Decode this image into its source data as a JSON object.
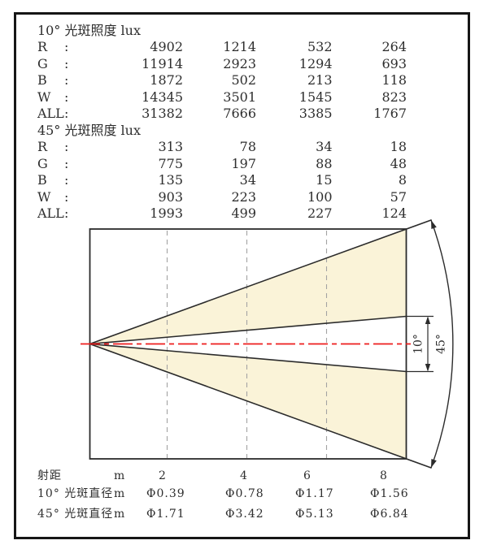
{
  "punct": {
    "colon": ":"
  },
  "sections": [
    {
      "title": "10° 光斑照度 lux",
      "rows": [
        {
          "label": "R",
          "values": [
            "4902",
            "1214",
            "532",
            "264"
          ]
        },
        {
          "label": "G",
          "values": [
            "11914",
            "2923",
            "1294",
            "693"
          ]
        },
        {
          "label": "B",
          "values": [
            "1872",
            "502",
            "213",
            "118"
          ]
        },
        {
          "label": "W",
          "values": [
            "14345",
            "3501",
            "1545",
            "823"
          ]
        },
        {
          "label": "ALL",
          "values": [
            "31382",
            "7666",
            "3385",
            "1767"
          ]
        }
      ]
    },
    {
      "title": "45° 光斑照度 lux",
      "rows": [
        {
          "label": "R",
          "values": [
            "313",
            "78",
            "34",
            "18"
          ]
        },
        {
          "label": "G",
          "values": [
            "775",
            "197",
            "88",
            "48"
          ]
        },
        {
          "label": "B",
          "values": [
            "135",
            "34",
            "15",
            "8"
          ]
        },
        {
          "label": "W",
          "values": [
            "903",
            "223",
            "100",
            "57"
          ]
        },
        {
          "label": "ALL",
          "values": [
            "1993",
            "499",
            "227",
            "124"
          ]
        }
      ]
    }
  ],
  "diagram": {
    "angle_narrow_label": "10°",
    "angle_wide_label": "45°",
    "beam_fill_color": "#faf3d8",
    "centerline_color": "#ee1c1c",
    "outline_color": "#2b2b2b",
    "grid_color": "#a3a3a3"
  },
  "footer": {
    "distance_row": {
      "label": "射距",
      "unit": "m",
      "values": [
        "2",
        "4",
        "6",
        "8"
      ]
    },
    "diameter_rows": [
      {
        "label": "10° 光斑直径",
        "unit": "m",
        "values": [
          "Φ0.39",
          "Φ0.78",
          "Φ1.17",
          "Φ1.56"
        ]
      },
      {
        "label": "45° 光斑直径",
        "unit": "m",
        "values": [
          "Φ1.71",
          "Φ3.42",
          "Φ5.13",
          "Φ6.84"
        ]
      }
    ]
  },
  "chart_data": [
    {
      "type": "table",
      "title": "10° 光斑照度 lux",
      "categories": [
        2,
        4,
        6,
        8
      ],
      "xlabel": "射距 m",
      "series": [
        {
          "name": "R",
          "values": [
            4902,
            1214,
            532,
            264
          ]
        },
        {
          "name": "G",
          "values": [
            11914,
            2923,
            1294,
            693
          ]
        },
        {
          "name": "B",
          "values": [
            1872,
            502,
            213,
            118
          ]
        },
        {
          "name": "W",
          "values": [
            14345,
            3501,
            1545,
            823
          ]
        },
        {
          "name": "ALL",
          "values": [
            31382,
            7666,
            3385,
            1767
          ]
        }
      ]
    },
    {
      "type": "table",
      "title": "45° 光斑照度 lux",
      "categories": [
        2,
        4,
        6,
        8
      ],
      "xlabel": "射距 m",
      "series": [
        {
          "name": "R",
          "values": [
            313,
            78,
            34,
            18
          ]
        },
        {
          "name": "G",
          "values": [
            775,
            197,
            88,
            48
          ]
        },
        {
          "name": "B",
          "values": [
            135,
            34,
            15,
            8
          ]
        },
        {
          "name": "W",
          "values": [
            903,
            223,
            100,
            57
          ]
        },
        {
          "name": "ALL",
          "values": [
            1993,
            499,
            227,
            124
          ]
        }
      ]
    },
    {
      "type": "diagram",
      "title": "beam spread",
      "beam_angles_deg": [
        10,
        45
      ],
      "distances_m": [
        2,
        4,
        6,
        8
      ],
      "spot_diameter_10deg_m": [
        0.39,
        0.78,
        1.17,
        1.56
      ],
      "spot_diameter_45deg_m": [
        1.71,
        3.42,
        5.13,
        6.84
      ]
    }
  ]
}
